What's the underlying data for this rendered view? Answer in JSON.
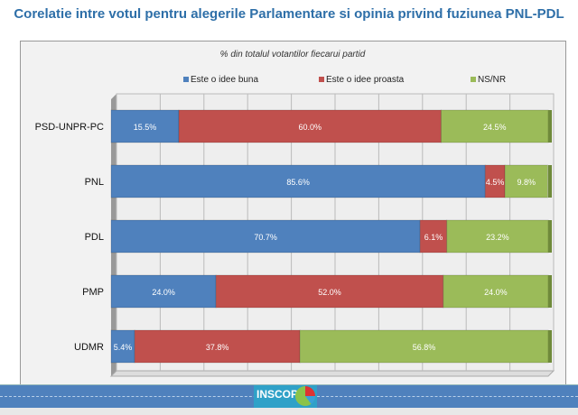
{
  "chart_data": {
    "type": "bar",
    "orientation": "horizontal",
    "stacked": "100%",
    "title": "Corelatie intre votul pentru alegerile Parlamentare si opinia privind fuziunea PNL-PDL",
    "subtitle": "% din totalul votantilor fiecarui partid",
    "categories": [
      "PSD-UNPR-PC",
      "PNL",
      "PDL",
      "PMP",
      "UDMR"
    ],
    "series": [
      {
        "name": "Este o idee buna",
        "color": "#4f81bd",
        "values": [
          15.5,
          85.6,
          70.7,
          24.0,
          5.4
        ]
      },
      {
        "name": "Este o idee proasta",
        "color": "#c0504d",
        "values": [
          60.0,
          4.5,
          6.1,
          52.0,
          37.8
        ]
      },
      {
        "name": "NS/NR",
        "color": "#9bbb59",
        "values": [
          24.5,
          9.8,
          23.2,
          24.0,
          56.8
        ]
      }
    ],
    "xlim": [
      0,
      100
    ],
    "grid": true,
    "legend": "top"
  },
  "footer": {
    "logo_text": "INSCOP"
  }
}
